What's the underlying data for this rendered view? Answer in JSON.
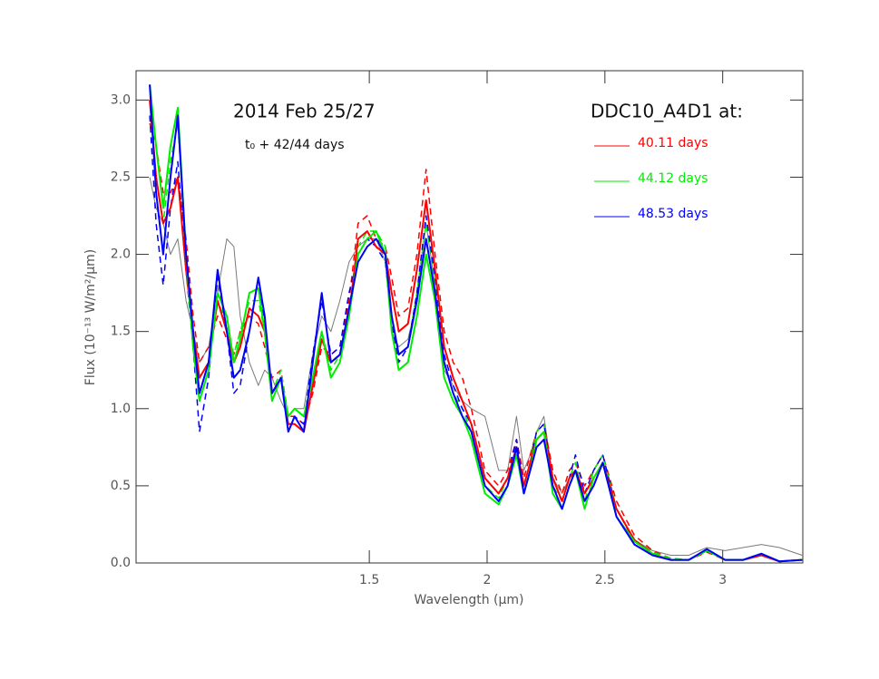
{
  "chart_data": {
    "type": "line",
    "xlabel": "Wavelength (μm)",
    "ylabel": "Flux (10⁻¹³ W/m²/μm)",
    "annotations": [
      "2014 Feb 25/27",
      "t₀ + 42/44 days"
    ],
    "legend_title": "DDC10_A4D1 at:",
    "legend": "upper right",
    "xlim": [
      0.51,
      3.34
    ],
    "ylim": [
      0,
      3.19
    ],
    "xticks": [
      1.5,
      2,
      2.5,
      3
    ],
    "yticks": [
      {
        "value": 0,
        "label": "0.0"
      },
      0.5,
      {
        "value": 1,
        "label": "1.0"
      },
      1.5,
      {
        "value": 2,
        "label": "2.0"
      },
      2.5,
      {
        "value": 3,
        "label": "3.0"
      }
    ],
    "x": [
      0.568,
      0.595,
      0.625,
      0.656,
      0.687,
      0.722,
      0.752,
      0.779,
      0.818,
      0.856,
      0.895,
      0.925,
      0.952,
      0.991,
      1.029,
      1.056,
      1.087,
      1.125,
      1.156,
      1.183,
      1.222,
      1.26,
      1.298,
      1.337,
      1.375,
      1.414,
      1.452,
      1.491,
      1.529,
      1.568,
      1.595,
      1.625,
      1.664,
      1.702,
      1.741,
      1.779,
      1.818,
      1.856,
      1.895,
      1.933,
      1.991,
      2.049,
      2.087,
      2.125,
      2.156,
      2.183,
      2.21,
      2.241,
      2.279,
      2.318,
      2.349,
      2.375,
      2.414,
      2.452,
      2.491,
      2.549,
      2.625,
      2.702,
      2.779,
      2.856,
      2.933,
      3.01,
      3.087,
      3.164,
      3.241,
      3.337
    ],
    "series": [
      {
        "color": "#7a7a7a",
        "dash": false,
        "values": [
          2.5,
          2.3,
          2.2,
          2.0,
          2.1,
          1.7,
          1.5,
          1.3,
          1.4,
          1.75,
          2.1,
          2.05,
          1.6,
          1.3,
          1.15,
          1.25,
          1.2,
          1.05,
          0.95,
          1.0,
          1.0,
          1.35,
          1.6,
          1.5,
          1.7,
          1.95,
          2.05,
          2.1,
          2.1,
          1.95,
          1.5,
          1.4,
          1.45,
          1.7,
          2.2,
          1.8,
          1.25,
          1.15,
          1.05,
          1.0,
          0.95,
          0.6,
          0.6,
          0.95,
          0.6,
          0.7,
          0.85,
          0.95,
          0.55,
          0.45,
          0.55,
          0.6,
          0.45,
          0.55,
          0.65,
          0.35,
          0.15,
          0.08,
          0.05,
          0.05,
          0.1,
          0.08,
          0.1,
          0.12,
          0.1,
          0.05
        ]
      },
      {
        "color": "#ff0000",
        "dash": true,
        "values": [
          2.85,
          2.7,
          2.4,
          2.4,
          2.5,
          2.1,
          1.6,
          1.3,
          1.4,
          1.6,
          1.45,
          1.35,
          1.5,
          1.6,
          1.55,
          1.4,
          1.2,
          1.25,
          0.95,
          0.95,
          0.9,
          1.1,
          1.4,
          1.35,
          1.4,
          1.7,
          2.2,
          2.25,
          2.1,
          2.05,
          1.85,
          1.6,
          1.65,
          2.0,
          2.55,
          2.0,
          1.5,
          1.3,
          1.2,
          1.0,
          0.6,
          0.5,
          0.6,
          0.8,
          0.55,
          0.7,
          0.85,
          0.9,
          0.6,
          0.45,
          0.6,
          0.65,
          0.5,
          0.6,
          0.7,
          0.4,
          0.18,
          0.08,
          0.03,
          0.02,
          0.07,
          0.02,
          0.02,
          0.05,
          0.01,
          0.02
        ]
      },
      {
        "color": "#00ee00",
        "dash": true,
        "values": [
          3.0,
          2.5,
          2.2,
          2.6,
          2.85,
          2.0,
          1.5,
          1.1,
          1.3,
          1.7,
          1.55,
          1.35,
          1.5,
          1.7,
          1.7,
          1.5,
          1.1,
          1.25,
          0.95,
          1.0,
          0.95,
          1.2,
          1.5,
          1.25,
          1.35,
          1.65,
          2.05,
          2.15,
          2.15,
          2.05,
          1.6,
          1.35,
          1.4,
          1.75,
          2.2,
          1.8,
          1.3,
          1.1,
          1.0,
          0.85,
          0.5,
          0.42,
          0.55,
          0.75,
          0.5,
          0.65,
          0.85,
          0.9,
          0.5,
          0.4,
          0.55,
          0.65,
          0.4,
          0.6,
          0.7,
          0.35,
          0.15,
          0.07,
          0.03,
          0.02,
          0.08,
          0.02,
          0.02,
          0.06,
          0.01,
          0.02
        ]
      },
      {
        "color": "#0000ff",
        "dash": true,
        "values": [
          2.9,
          2.2,
          1.8,
          2.3,
          2.6,
          1.9,
          1.4,
          0.85,
          1.2,
          1.85,
          1.5,
          1.1,
          1.15,
          1.5,
          1.85,
          1.55,
          1.05,
          1.2,
          0.85,
          0.95,
          0.9,
          1.35,
          1.7,
          1.35,
          1.4,
          1.75,
          2.0,
          2.1,
          2.05,
          1.95,
          1.55,
          1.3,
          1.4,
          1.75,
          2.25,
          1.85,
          1.35,
          1.15,
          1.0,
          0.9,
          0.55,
          0.45,
          0.55,
          0.8,
          0.5,
          0.65,
          0.85,
          0.9,
          0.55,
          0.4,
          0.55,
          0.7,
          0.45,
          0.6,
          0.7,
          0.35,
          0.14,
          0.06,
          0.02,
          0.02,
          0.08,
          0.02,
          0.02,
          0.06,
          0.01,
          0.02
        ]
      },
      {
        "name": "40.11 days",
        "color": "#ff0000",
        "dash": false,
        "values": [
          3.0,
          2.5,
          2.2,
          2.3,
          2.5,
          1.9,
          1.5,
          1.2,
          1.3,
          1.7,
          1.5,
          1.3,
          1.4,
          1.65,
          1.6,
          1.5,
          1.1,
          1.2,
          0.9,
          0.9,
          0.85,
          1.15,
          1.45,
          1.3,
          1.35,
          1.6,
          2.1,
          2.15,
          2.05,
          2.0,
          1.75,
          1.5,
          1.55,
          1.9,
          2.35,
          1.9,
          1.4,
          1.2,
          1.05,
          0.9,
          0.55,
          0.45,
          0.55,
          0.75,
          0.5,
          0.65,
          0.8,
          0.85,
          0.55,
          0.4,
          0.55,
          0.6,
          0.45,
          0.55,
          0.65,
          0.35,
          0.15,
          0.06,
          0.02,
          0.02,
          0.08,
          0.02,
          0.02,
          0.05,
          0.01,
          0.02
        ]
      },
      {
        "name": "44.12 days",
        "color": "#00ee00",
        "dash": false,
        "values": [
          3.1,
          2.7,
          2.3,
          2.7,
          2.95,
          2.0,
          1.4,
          1.05,
          1.25,
          1.75,
          1.6,
          1.3,
          1.45,
          1.75,
          1.78,
          1.5,
          1.05,
          1.2,
          0.95,
          1.0,
          0.95,
          1.2,
          1.5,
          1.2,
          1.3,
          1.6,
          2.0,
          2.1,
          2.15,
          2.0,
          1.5,
          1.25,
          1.3,
          1.6,
          2.0,
          1.7,
          1.2,
          1.05,
          0.95,
          0.8,
          0.45,
          0.38,
          0.5,
          0.7,
          0.45,
          0.6,
          0.8,
          0.85,
          0.45,
          0.35,
          0.5,
          0.6,
          0.35,
          0.55,
          0.65,
          0.3,
          0.14,
          0.06,
          0.02,
          0.02,
          0.08,
          0.02,
          0.02,
          0.06,
          0.01,
          0.02
        ]
      },
      {
        "name": "48.53 days",
        "color": "#0000ff",
        "dash": false,
        "values": [
          3.1,
          2.4,
          2.0,
          2.5,
          2.9,
          2.0,
          1.5,
          1.1,
          1.3,
          1.9,
          1.5,
          1.2,
          1.25,
          1.5,
          1.85,
          1.6,
          1.1,
          1.2,
          0.85,
          0.95,
          0.85,
          1.3,
          1.75,
          1.3,
          1.35,
          1.65,
          1.95,
          2.05,
          2.1,
          2.0,
          1.6,
          1.35,
          1.4,
          1.7,
          2.1,
          1.75,
          1.3,
          1.1,
          0.95,
          0.85,
          0.5,
          0.4,
          0.5,
          0.75,
          0.45,
          0.6,
          0.75,
          0.8,
          0.5,
          0.35,
          0.5,
          0.6,
          0.4,
          0.5,
          0.65,
          0.3,
          0.12,
          0.05,
          0.02,
          0.02,
          0.09,
          0.02,
          0.02,
          0.06,
          0.01,
          0.02
        ]
      }
    ]
  }
}
